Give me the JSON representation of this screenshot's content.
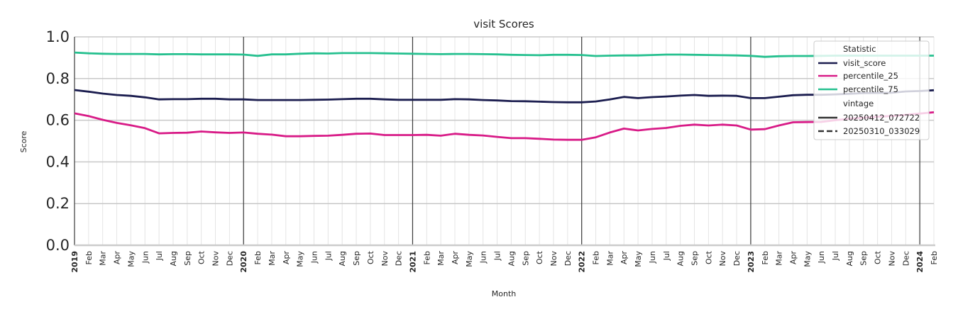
{
  "title": "visit Scores",
  "colors": {
    "visit_score": "#1b1d4f",
    "percentile_25": "#d81b87",
    "percentile_75": "#26c08f",
    "year_line": "#3a3a3a",
    "grid_major": "#c8c8c8",
    "grid_minor": "#e4e4e4",
    "axis": "#3a3a3a"
  },
  "legend": {
    "title_statistic": "Statistic",
    "items": [
      {
        "label": "visit_score",
        "key": "visit_score",
        "style": "solid"
      },
      {
        "label": "percentile_25",
        "key": "percentile_25",
        "style": "solid"
      },
      {
        "label": "percentile_75",
        "key": "percentile_75",
        "style": "solid"
      }
    ],
    "title_vintage": "vintage",
    "vintages": [
      {
        "label": "20250412_072722",
        "style": "solid"
      },
      {
        "label": "20250310_033029",
        "style": "dashed"
      }
    ]
  },
  "chart_data": {
    "type": "line",
    "title": "visit Scores",
    "xlabel": "Month",
    "ylabel": "Score",
    "ylim": [
      0.0,
      1.0
    ],
    "yticks": [
      "0.0",
      "0.2",
      "0.4",
      "0.6",
      "0.8",
      "1.0"
    ],
    "grid": true,
    "legend_position": "upper right",
    "x": [
      "2019-01",
      "2019-02",
      "2019-03",
      "2019-04",
      "2019-05",
      "2019-06",
      "2019-07",
      "2019-08",
      "2019-09",
      "2019-10",
      "2019-11",
      "2019-12",
      "2020-01",
      "2020-02",
      "2020-03",
      "2020-04",
      "2020-05",
      "2020-06",
      "2020-07",
      "2020-08",
      "2020-09",
      "2020-10",
      "2020-11",
      "2020-12",
      "2021-01",
      "2021-02",
      "2021-03",
      "2021-04",
      "2021-05",
      "2021-06",
      "2021-07",
      "2021-08",
      "2021-09",
      "2021-10",
      "2021-11",
      "2021-12",
      "2022-01",
      "2022-02",
      "2022-03",
      "2022-04",
      "2022-05",
      "2022-06",
      "2022-07",
      "2022-08",
      "2022-09",
      "2022-10",
      "2022-11",
      "2022-12",
      "2023-01",
      "2023-02",
      "2023-03",
      "2023-04",
      "2023-05",
      "2023-06",
      "2023-07",
      "2023-08",
      "2023-09",
      "2023-10",
      "2023-11",
      "2023-12",
      "2024-01",
      "2024-02"
    ],
    "x_tick_labels": [
      "2019",
      "Feb",
      "Mar",
      "Apr",
      "May",
      "Jun",
      "Jul",
      "Aug",
      "Sep",
      "Oct",
      "Nov",
      "Dec",
      "2020",
      "Feb",
      "Mar",
      "Apr",
      "May",
      "Jun",
      "Jul",
      "Aug",
      "Sep",
      "Oct",
      "Nov",
      "Dec",
      "2021",
      "Feb",
      "Mar",
      "Apr",
      "May",
      "Jun",
      "Jul",
      "Aug",
      "Sep",
      "Oct",
      "Nov",
      "Dec",
      "2022",
      "Feb",
      "Mar",
      "Apr",
      "May",
      "Jun",
      "Jul",
      "Aug",
      "Sep",
      "Oct",
      "Nov",
      "Dec",
      "2023",
      "Feb",
      "Mar",
      "Apr",
      "May",
      "Jun",
      "Jul",
      "Aug",
      "Sep",
      "Oct",
      "Nov",
      "Dec",
      "2024",
      "Feb"
    ],
    "series": [
      {
        "name": "visit_score",
        "vintage": "20250412_072722",
        "values": [
          0.745,
          0.737,
          0.728,
          0.721,
          0.717,
          0.71,
          0.7,
          0.701,
          0.701,
          0.703,
          0.703,
          0.7,
          0.7,
          0.697,
          0.697,
          0.697,
          0.697,
          0.698,
          0.699,
          0.701,
          0.703,
          0.703,
          0.7,
          0.698,
          0.698,
          0.698,
          0.698,
          0.701,
          0.7,
          0.697,
          0.695,
          0.692,
          0.691,
          0.689,
          0.687,
          0.686,
          0.686,
          0.69,
          0.7,
          0.712,
          0.706,
          0.711,
          0.714,
          0.718,
          0.721,
          0.717,
          0.718,
          0.717,
          0.706,
          0.706,
          0.713,
          0.72,
          0.722,
          0.722,
          0.724,
          0.727,
          0.73,
          0.731,
          0.732,
          0.738,
          0.74,
          0.744
        ]
      },
      {
        "name": "percentile_25",
        "vintage": "20250412_072722",
        "values": [
          0.633,
          0.62,
          0.602,
          0.587,
          0.576,
          0.562,
          0.537,
          0.539,
          0.54,
          0.546,
          0.542,
          0.539,
          0.541,
          0.535,
          0.531,
          0.523,
          0.523,
          0.525,
          0.526,
          0.53,
          0.535,
          0.536,
          0.529,
          0.529,
          0.529,
          0.53,
          0.526,
          0.535,
          0.53,
          0.527,
          0.52,
          0.514,
          0.514,
          0.511,
          0.507,
          0.506,
          0.506,
          0.518,
          0.541,
          0.56,
          0.551,
          0.558,
          0.563,
          0.573,
          0.579,
          0.575,
          0.579,
          0.575,
          0.555,
          0.557,
          0.575,
          0.59,
          0.591,
          0.592,
          0.6,
          0.607,
          0.612,
          0.617,
          0.62,
          0.626,
          0.632,
          0.638
        ]
      },
      {
        "name": "percentile_75",
        "vintage": "20250412_072722",
        "values": [
          0.925,
          0.921,
          0.919,
          0.918,
          0.918,
          0.918,
          0.916,
          0.917,
          0.917,
          0.916,
          0.916,
          0.916,
          0.915,
          0.909,
          0.916,
          0.916,
          0.919,
          0.921,
          0.92,
          0.922,
          0.922,
          0.922,
          0.921,
          0.92,
          0.919,
          0.918,
          0.917,
          0.918,
          0.918,
          0.917,
          0.916,
          0.914,
          0.913,
          0.912,
          0.914,
          0.914,
          0.913,
          0.908,
          0.91,
          0.911,
          0.911,
          0.913,
          0.915,
          0.915,
          0.914,
          0.913,
          0.912,
          0.911,
          0.909,
          0.904,
          0.907,
          0.908,
          0.908,
          0.909,
          0.91,
          0.91,
          0.91,
          0.91,
          0.91,
          0.91,
          0.91,
          0.91
        ]
      }
    ]
  }
}
